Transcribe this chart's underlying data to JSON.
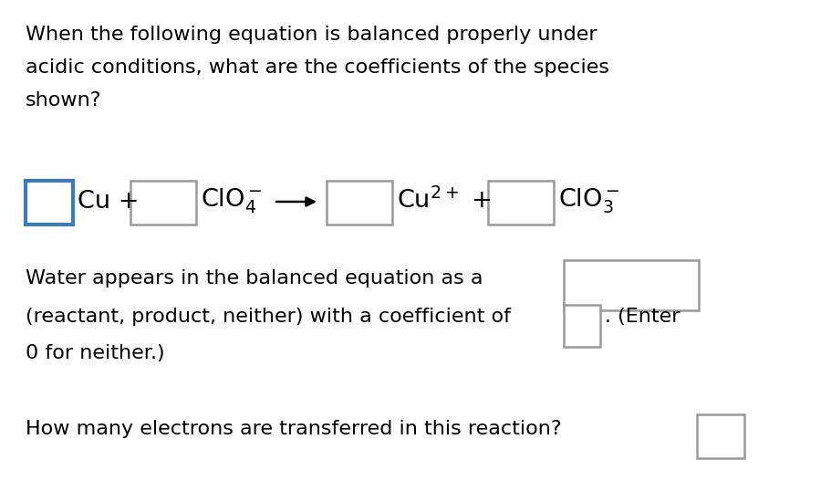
{
  "background_color": "#ffffff",
  "text_color": "#000000",
  "figsize": [
    9.12,
    5.5
  ],
  "dpi": 100,
  "question_line1": "When the following equation is balanced properly under",
  "question_line2": "acidic conditions, what are the coefficients of the species",
  "question_line3": "shown?",
  "water_line1": "Water appears in the balanced equation as a",
  "water_line2": "(reactant, product, neither) with a coefficient of",
  "water_line3": ". (Enter",
  "water_line4": "0 for neither.)",
  "electrons_text": "How many electrons are transferred in this reaction?",
  "font_size_main": 16.0,
  "font_size_equation": 19.5,
  "box_color_blue": "#3a7bbf",
  "box_color_gray": "#999999"
}
